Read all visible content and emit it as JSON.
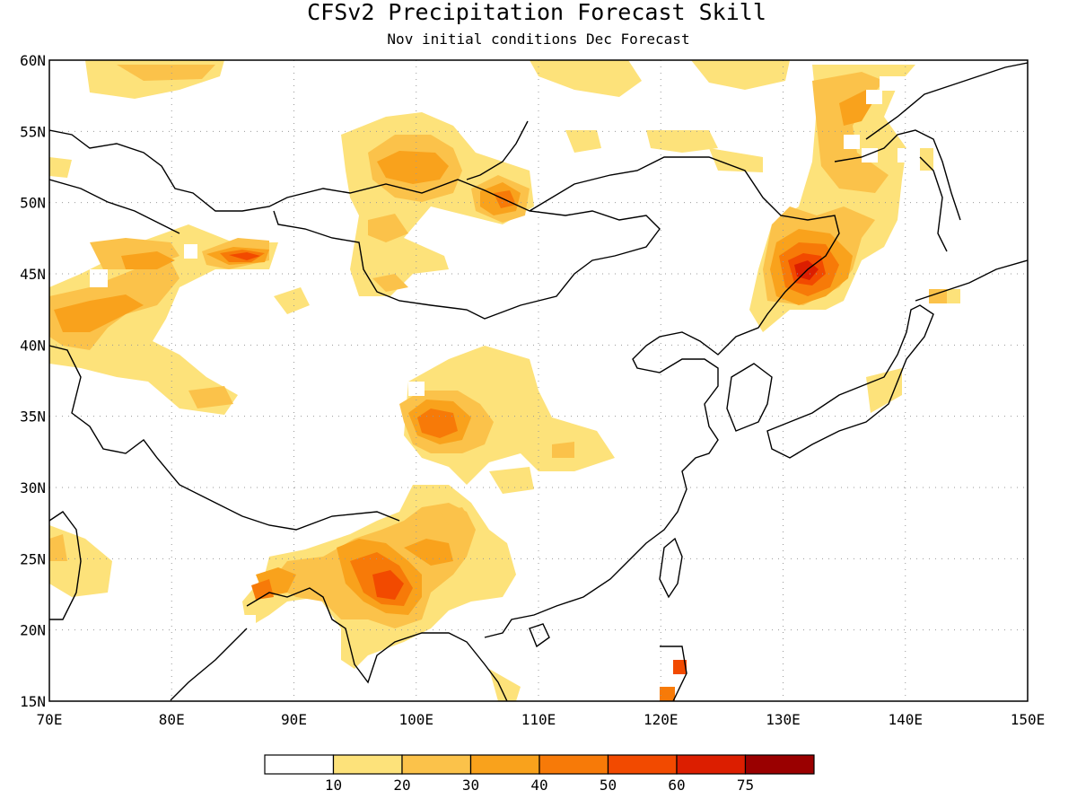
{
  "title": "CFSv2 Precipitation Forecast Skill",
  "subtitle": "Nov initial conditions  Dec Forecast",
  "map": {
    "lon_range": [
      70,
      150
    ],
    "lat_range": [
      15,
      60
    ],
    "lon_ticks": [
      "70E",
      "80E",
      "90E",
      "100E",
      "110E",
      "120E",
      "130E",
      "140E",
      "150E"
    ],
    "lat_ticks": [
      "15N",
      "20N",
      "25N",
      "30N",
      "35N",
      "40N",
      "45N",
      "50N",
      "55N",
      "60N"
    ],
    "grid": true
  },
  "colorbar": {
    "colors": [
      "#ffffff",
      "#fde27a",
      "#fbc24a",
      "#f9a21c",
      "#f77a08",
      "#f24a00",
      "#dc1e00",
      "#9a0000"
    ],
    "labels": [
      "10",
      "20",
      "30",
      "40",
      "50",
      "60",
      "75"
    ]
  },
  "skill_regions": [
    {
      "name": "central-china",
      "lon": 101.5,
      "lat": 35.0,
      "peak_level": 4
    },
    {
      "name": "southwest-china-myanmar",
      "lon": 98.0,
      "lat": 22.8,
      "peak_level": 5
    },
    {
      "name": "northeast-china",
      "lon": 132.5,
      "lat": 44.5,
      "peak_level": 6
    },
    {
      "name": "dzungaria",
      "lon": 86.5,
      "lat": 46.0,
      "peak_level": 5
    },
    {
      "name": "central-asia",
      "lon": 74.0,
      "lat": 42.0,
      "peak_level": 3
    },
    {
      "name": "mongolia-north",
      "lon": 101.0,
      "lat": 52.0,
      "peak_level": 3
    },
    {
      "name": "lake-baikal-south",
      "lon": 107.5,
      "lat": 50.3,
      "peak_level": 4
    },
    {
      "name": "taiwan",
      "lon": 121.0,
      "lat": 17.0,
      "peak_level": 5
    },
    {
      "name": "okhotsk-coast",
      "lon": 136.5,
      "lat": 56.0,
      "peak_level": 3
    }
  ]
}
